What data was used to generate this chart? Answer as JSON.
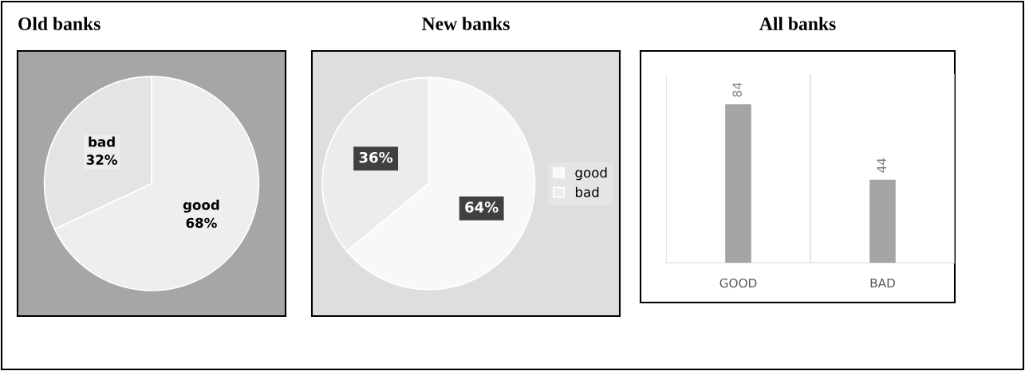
{
  "chart_data": [
    {
      "type": "pie",
      "title": "Old banks",
      "categories": [
        "good",
        "bad"
      ],
      "values": [
        68,
        32
      ],
      "value_labels": [
        "68%",
        "32%"
      ],
      "colors": [
        "#eeeeee",
        "#e4e4e4"
      ],
      "legend": false
    },
    {
      "type": "pie",
      "title": "New banks",
      "categories": [
        "good",
        "bad"
      ],
      "values": [
        64,
        36
      ],
      "value_labels": [
        "64%",
        "36%"
      ],
      "colors": [
        "#f8f8f8",
        "#ececec"
      ],
      "legend": "right"
    },
    {
      "type": "bar",
      "title": "All banks",
      "categories": [
        "GOOD",
        "BAD"
      ],
      "values": [
        84,
        44
      ],
      "color": "#a5a5a5",
      "ylim": [
        0,
        100
      ],
      "data_labels": true,
      "grid": "x",
      "tick_labels": "x"
    }
  ]
}
